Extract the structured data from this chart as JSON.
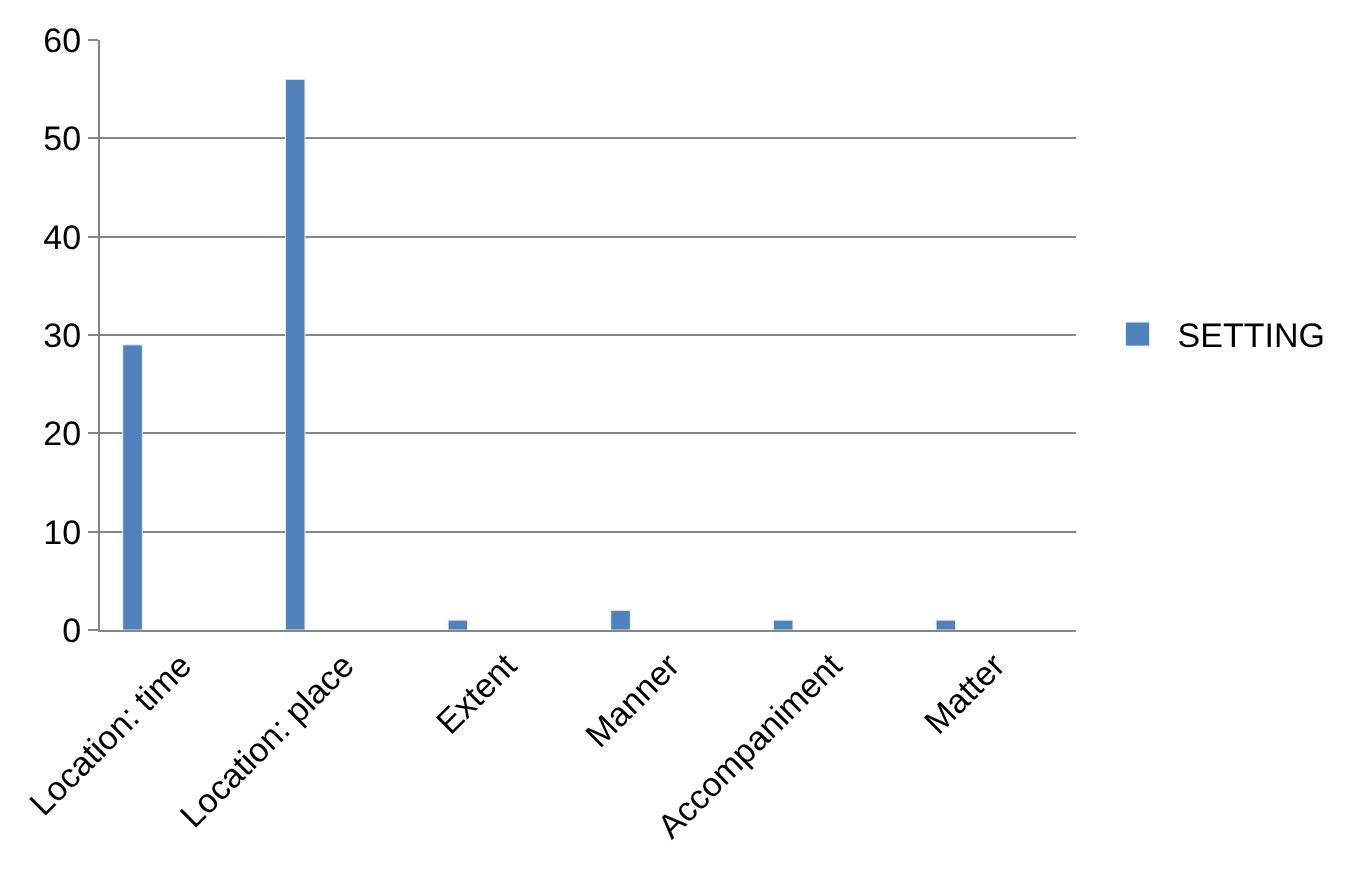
{
  "chart_data": {
    "type": "bar",
    "categories": [
      "Location: time",
      "Location: place",
      "Extent",
      "Manner",
      "Accompaniment",
      "Matter"
    ],
    "series": [
      {
        "name": "SETTING",
        "color": "#4f81bd",
        "values": [
          29,
          56,
          1,
          2,
          1,
          1
        ]
      }
    ],
    "ylim": [
      0,
      60
    ],
    "yticks": [
      0,
      10,
      20,
      30,
      40,
      50,
      60
    ],
    "grid": "y",
    "legend": "right"
  }
}
